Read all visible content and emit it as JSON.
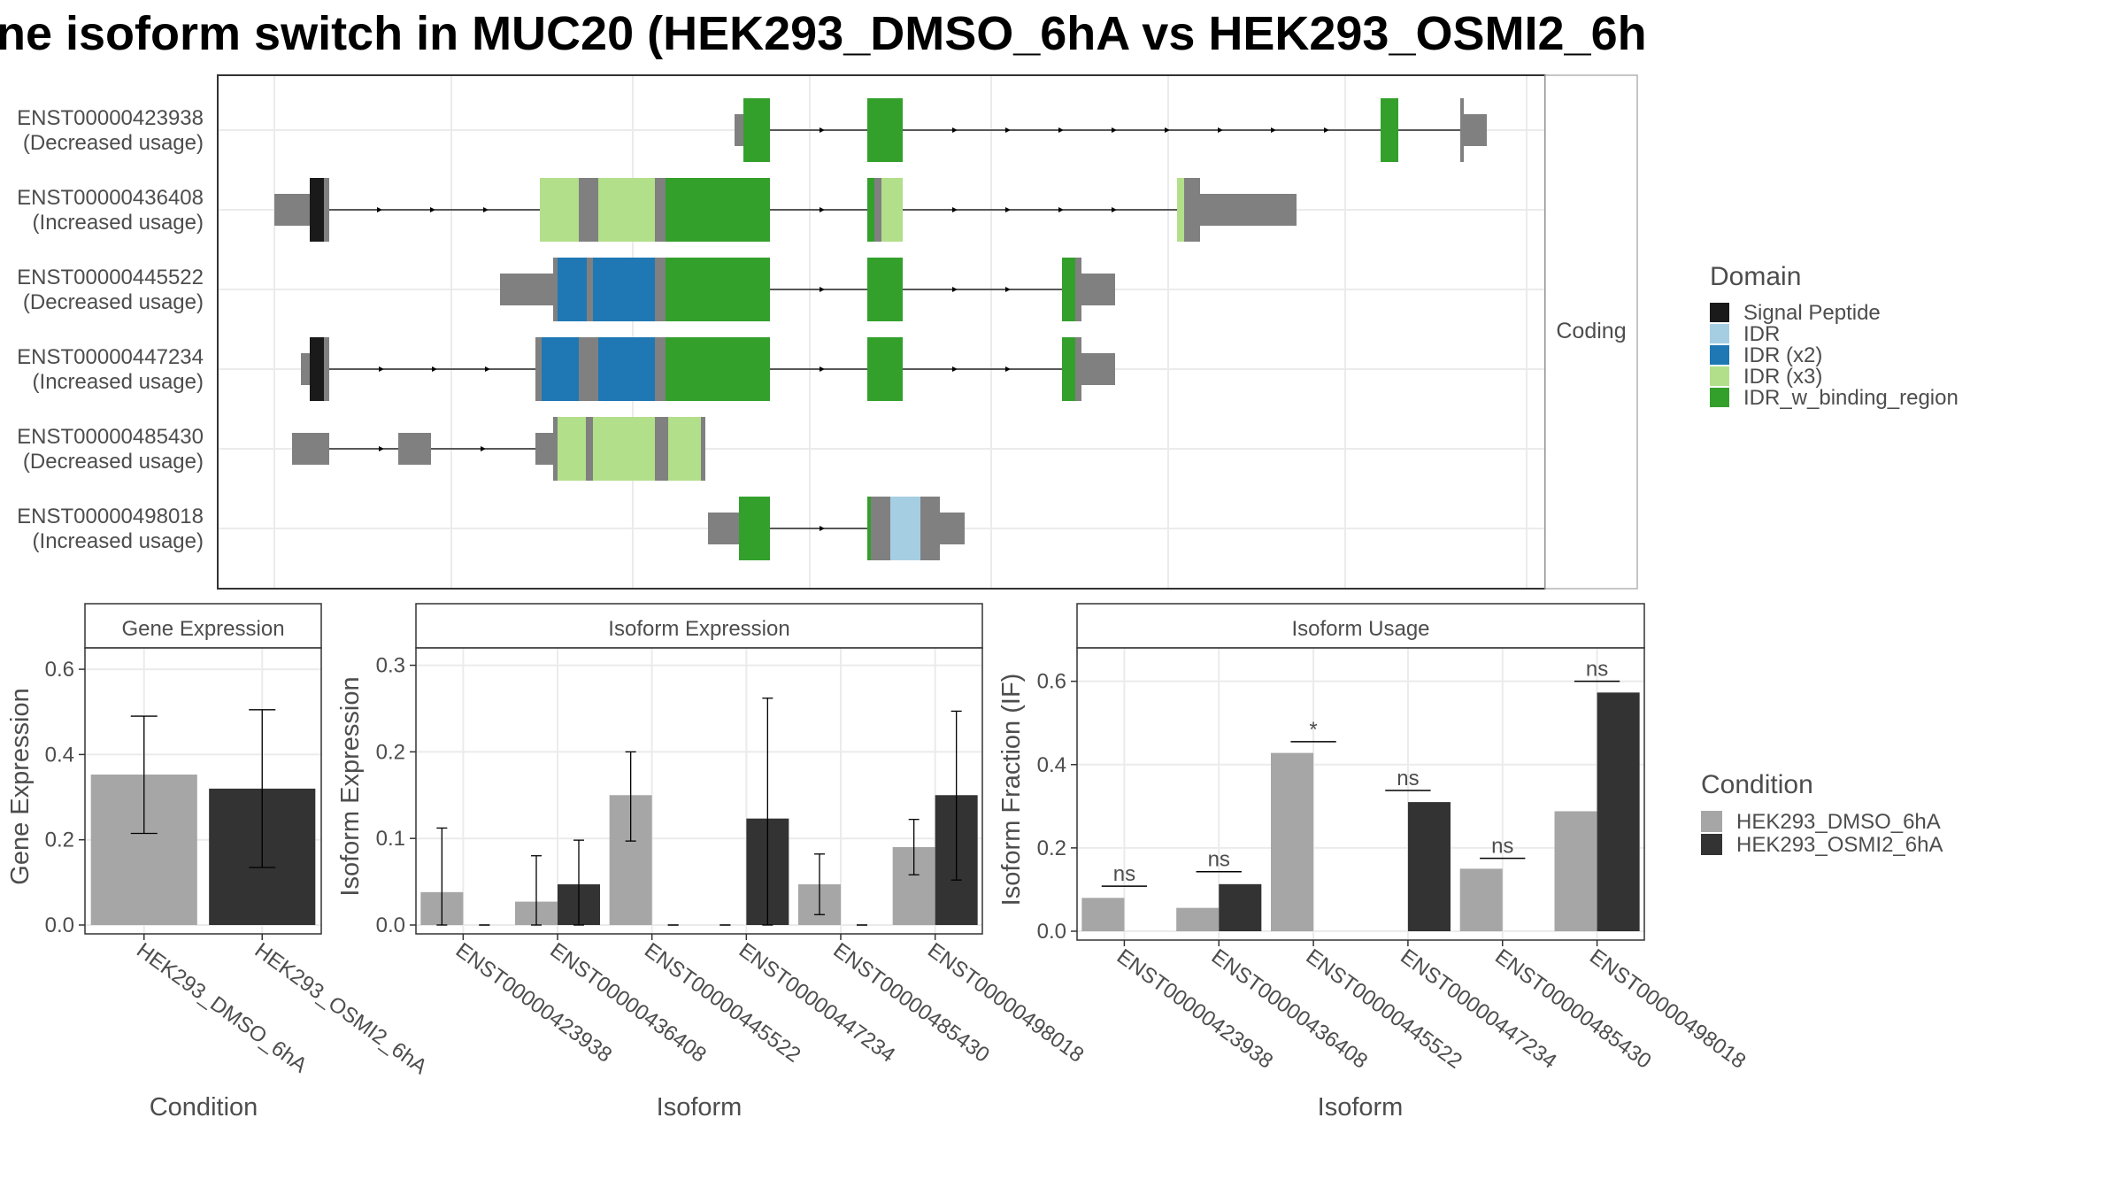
{
  "title": "ne isoform switch in MUC20 (HEK293_DMSO_6hA vs HEK293_OSMI2_6h",
  "structure": {
    "facet_label": "Coding",
    "isoforms": [
      {
        "id": "ENST00000423938",
        "usage": "(Decreased usage)"
      },
      {
        "id": "ENST00000436408",
        "usage": "(Increased usage)"
      },
      {
        "id": "ENST00000445522",
        "usage": "(Decreased usage)"
      },
      {
        "id": "ENST00000447234",
        "usage": "(Increased usage)"
      },
      {
        "id": "ENST00000485430",
        "usage": "(Decreased usage)"
      },
      {
        "id": "ENST00000498018",
        "usage": "(Increased usage)"
      }
    ]
  },
  "legend_domain": {
    "title": "Domain",
    "items": [
      {
        "label": "Signal Peptide",
        "color": "#1a1a1a"
      },
      {
        "label": "IDR",
        "color": "#a6cee3"
      },
      {
        "label": "IDR (x2)",
        "color": "#1f78b4"
      },
      {
        "label": "IDR (x3)",
        "color": "#b2df8a"
      },
      {
        "label": "IDR_w_binding_region",
        "color": "#33a02c"
      }
    ]
  },
  "legend_condition": {
    "title": "Condition",
    "items": [
      {
        "label": "HEK293_DMSO_6hA",
        "color": "#a6a6a6"
      },
      {
        "label": "HEK293_OSMI2_6hA",
        "color": "#333333"
      }
    ]
  },
  "chart_data": [
    {
      "type": "bar",
      "title": "Gene Expression",
      "xlabel": "Condition",
      "ylabel": "Gene Expression",
      "ylim": [
        0,
        0.65
      ],
      "yticks": [
        0.0,
        0.2,
        0.4,
        0.6
      ],
      "ytick_labels": [
        "0.0",
        "0.2",
        "0.4",
        "0.6"
      ],
      "categories": [
        "HEK293_DMSO_6hA",
        "HEK293_OSMI2_6hA"
      ],
      "values": [
        0.353,
        0.32
      ],
      "err_low": [
        0.215,
        0.135
      ],
      "err_high": [
        0.49,
        0.505
      ]
    },
    {
      "type": "bar",
      "title": "Isoform Expression",
      "xlabel": "Isoform",
      "ylabel": "Isoform Expression",
      "ylim": [
        0,
        0.32
      ],
      "yticks": [
        0.0,
        0.1,
        0.2,
        0.3
      ],
      "ytick_labels": [
        "0.0",
        "0.1",
        "0.2",
        "0.3"
      ],
      "categories": [
        "ENST00000423938",
        "ENST00000436408",
        "ENST00000445522",
        "ENST00000447234",
        "ENST00000485430",
        "ENST00000498018"
      ],
      "series": [
        {
          "name": "HEK293_DMSO_6hA",
          "values": [
            0.038,
            0.027,
            0.15,
            0.0,
            0.047,
            0.09
          ],
          "err_low": [
            0.0,
            0.0,
            0.097,
            0.0,
            0.012,
            0.058
          ],
          "err_high": [
            0.112,
            0.08,
            0.2,
            0.0,
            0.082,
            0.122
          ]
        },
        {
          "name": "HEK293_OSMI2_6hA",
          "values": [
            0.0,
            0.047,
            0.0,
            0.123,
            0.0,
            0.15
          ],
          "err_low": [
            0.0,
            0.0,
            0.0,
            0.0,
            0.0,
            0.052
          ],
          "err_high": [
            0.0,
            0.098,
            0.0,
            0.262,
            0.0,
            0.247
          ]
        }
      ]
    },
    {
      "type": "bar",
      "title": "Isoform Usage",
      "xlabel": "Isoform",
      "ylabel": "Isoform Fraction (IF)",
      "ylim": [
        0,
        0.68
      ],
      "yticks": [
        0.0,
        0.2,
        0.4,
        0.6
      ],
      "ytick_labels": [
        "0.0",
        "0.2",
        "0.4",
        "0.6"
      ],
      "categories": [
        "ENST00000423938",
        "ENST00000436408",
        "ENST00000445522",
        "ENST00000447234",
        "ENST00000485430",
        "ENST00000498018"
      ],
      "series": [
        {
          "name": "HEK293_DMSO_6hA",
          "values": [
            0.08,
            0.056,
            0.428,
            0.0,
            0.15,
            0.288
          ]
        },
        {
          "name": "HEK293_OSMI2_6hA",
          "values": [
            0.0,
            0.113,
            0.0,
            0.31,
            0.0,
            0.573
          ]
        }
      ],
      "significance": [
        "ns",
        "ns",
        "*",
        "ns",
        "ns",
        "ns"
      ],
      "sig_line_y": [
        0.108,
        0.143,
        0.455,
        0.338,
        0.175,
        0.6
      ]
    }
  ]
}
